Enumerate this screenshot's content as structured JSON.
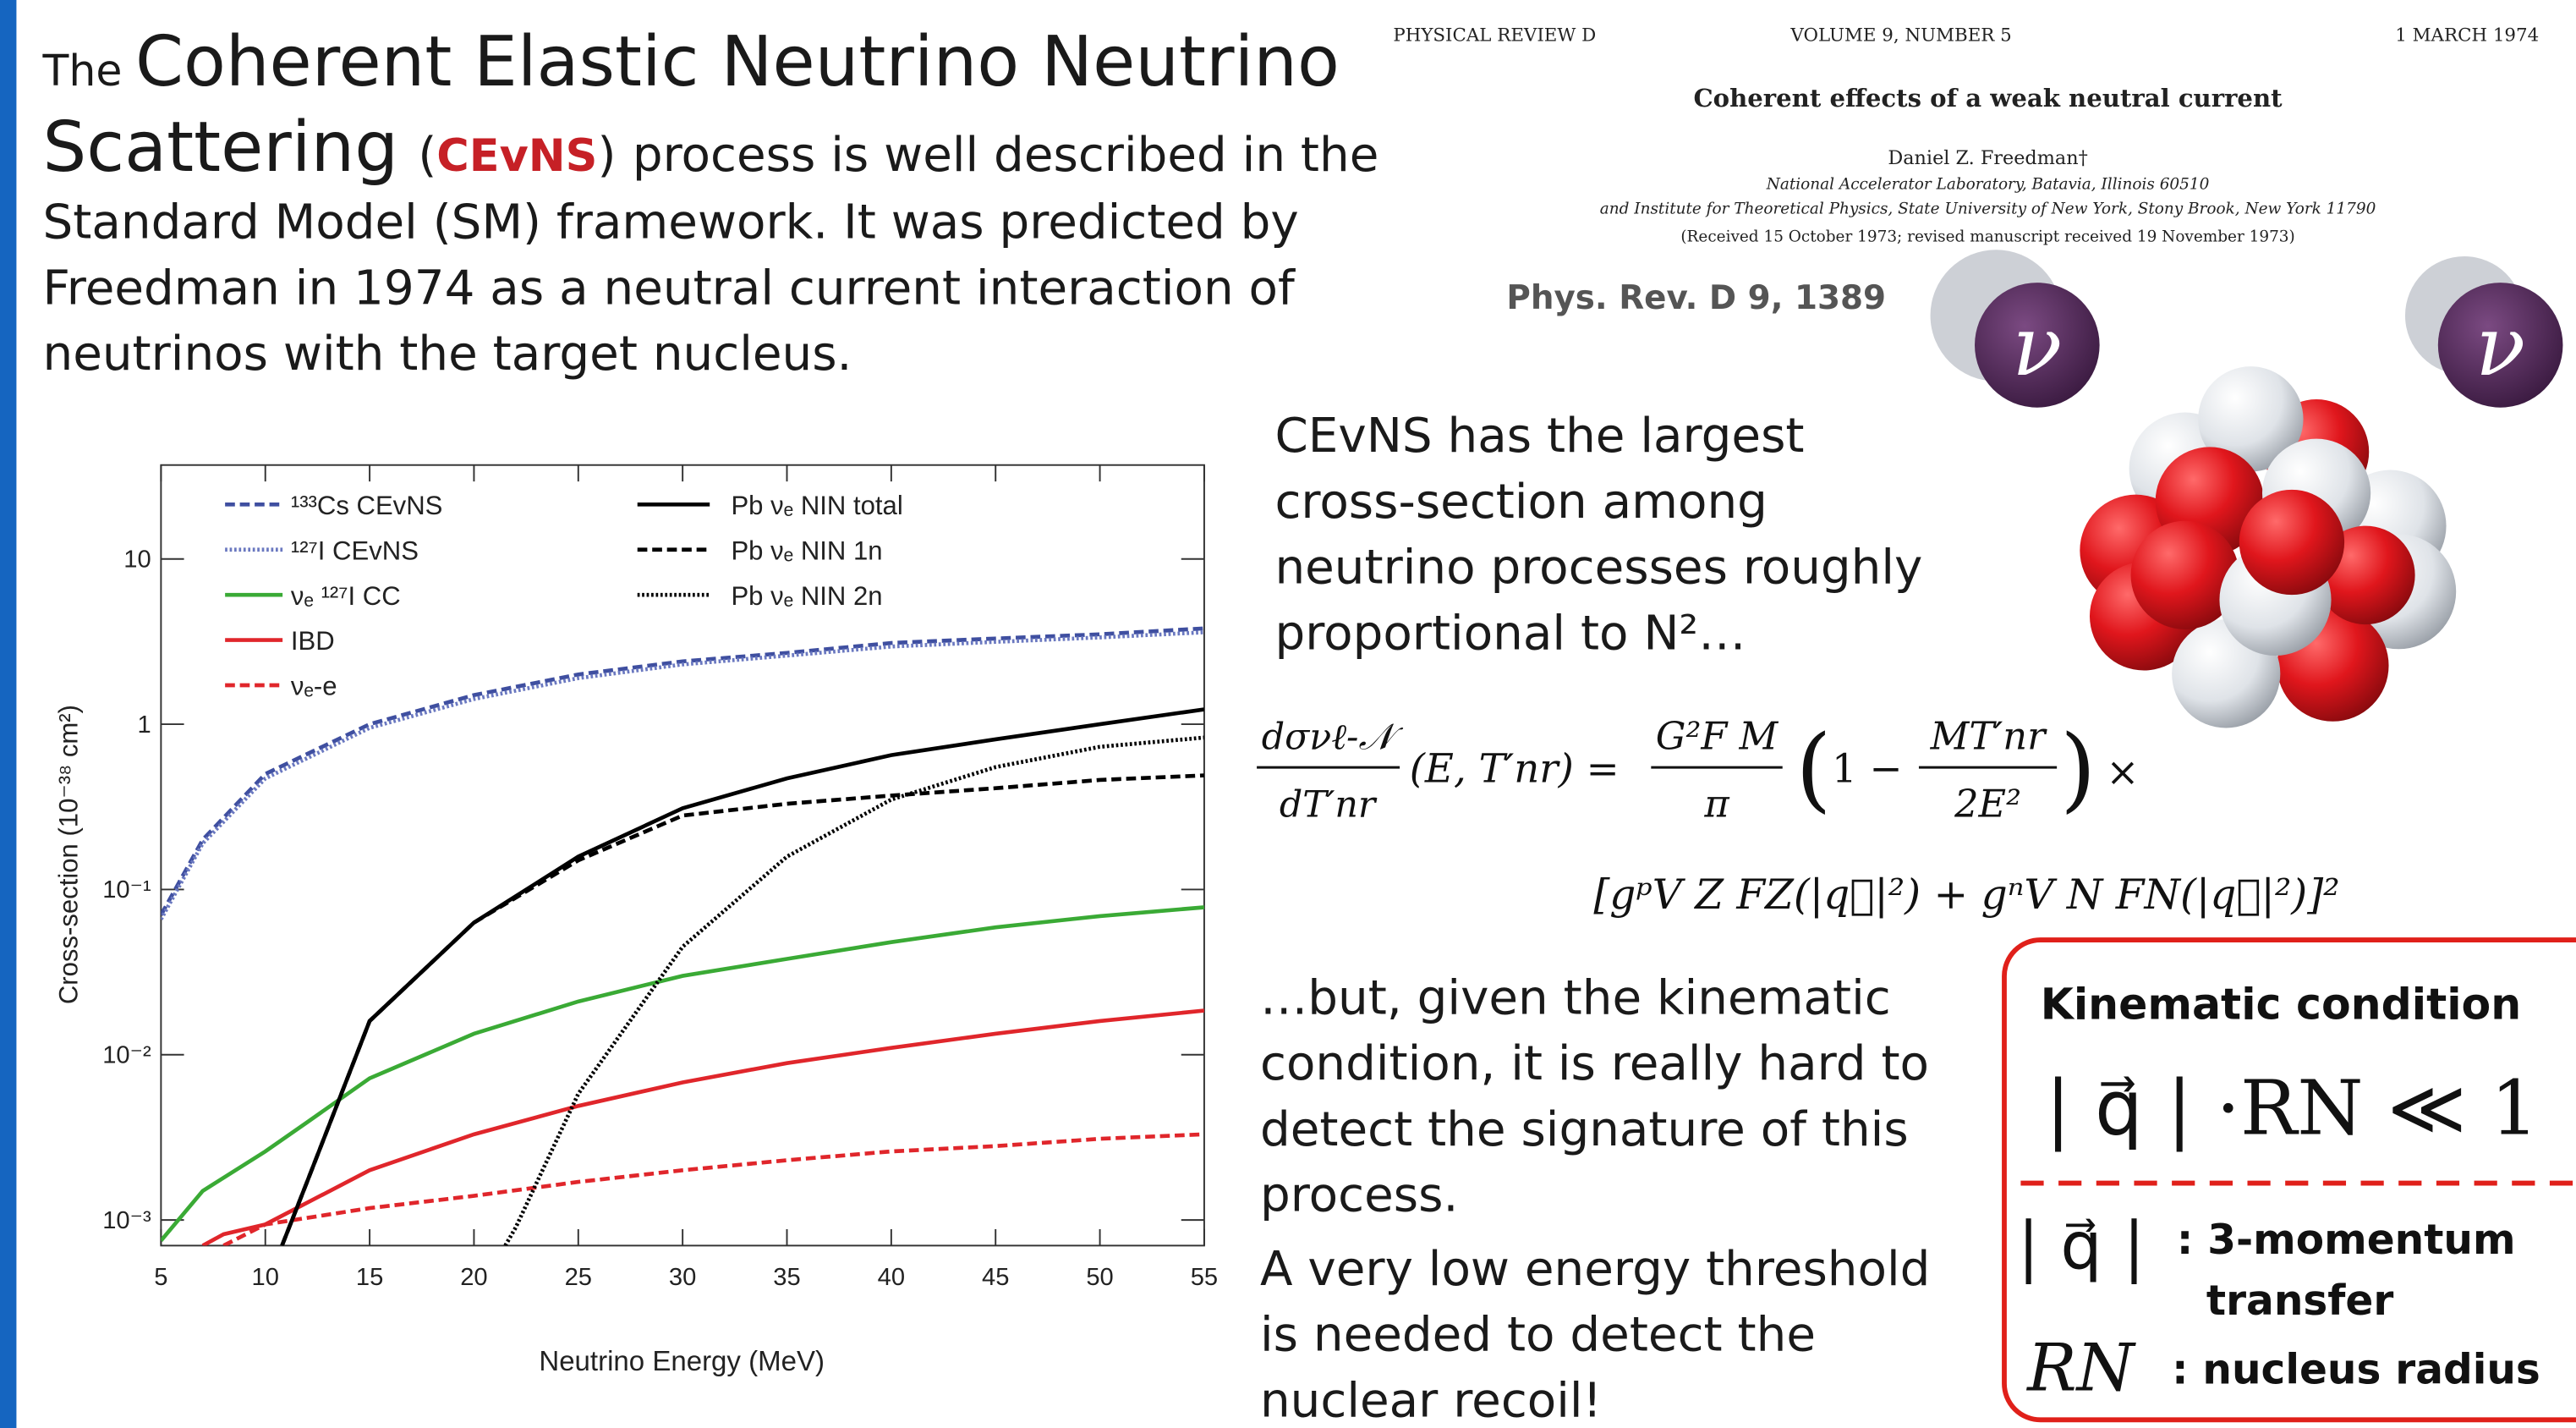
{
  "intro": {
    "lead": "The",
    "title_a": "Coherent Elastic Neutrino Neutrino",
    "title_b": "Scattering",
    "abbr_open": "(",
    "abbr": "CEvNS",
    "abbr_close": ")",
    "rest": "process is well described in the",
    "lines": [
      "Standard Model (SM) framework. It was predicted by",
      "Freedman in 1974 as a neutral current interaction of",
      "neutrinos with the target nucleus."
    ]
  },
  "paper": {
    "journal": "PHYSICAL REVIEW D",
    "volume": "VOLUME 9, NUMBER 5",
    "date": "1 MARCH 1974",
    "title": "Coherent effects of a weak neutral current",
    "author": "Daniel Z. Freedman†",
    "affiliation_1": "National Accelerator Laboratory, Batavia, Illinois 60510",
    "affiliation_2": "and Institute for Theoretical Physics, State University of New York, Stony Brook, New York 11790",
    "received": "(Received 15 October 1973; revised manuscript received 19 November 1973)",
    "reference": "Phys. Rev. D 9, 1389"
  },
  "neutrino_symbol": "ν",
  "cross_section_text": [
    "CEvNS has the largest",
    "cross-section among",
    "neutrino processes roughly",
    "proportional to N²…"
  ],
  "formula": {
    "lhs_num": "dσνℓ-𝒩",
    "lhs_den": "dT′nr",
    "args": "(E, T′nr) =",
    "frac1_num": "G²F M",
    "frac1_den": "π",
    "paren_open": "(",
    "one_minus": "1 −",
    "frac2_num": "MT′nr",
    "frac2_den": "2E²",
    "paren_close": ")",
    "times": "×",
    "line2": "[gᵖV Z FZ(|q⃗|²) + gⁿV N FN(|q⃗|²)]²"
  },
  "kinematic_text": [
    "…but, given the kinematic",
    "condition, it is really hard to",
    "detect the signature of this",
    "process."
  ],
  "threshold_text": [
    "A very low energy threshold",
    "is needed to detect the",
    "nuclear recoil!"
  ],
  "condition_box": {
    "title": "Kinematic condition",
    "condition": "| q⃗ | ·RN ≪ 1",
    "q_symbol": "| q⃗ |",
    "q_desc_1": ": 3-momentum",
    "q_desc_2": "transfer",
    "r_symbol": "RN",
    "r_desc": ": nucleus radius"
  },
  "chart_data": {
    "type": "line",
    "xlabel": "Neutrino Energy (MeV)",
    "ylabel": "Cross-section (10⁻³⁸ cm²)",
    "xlim": [
      5,
      55
    ],
    "ylim": [
      0.0007,
      37
    ],
    "log_y": true,
    "xticks": [
      5,
      10,
      15,
      20,
      25,
      30,
      35,
      40,
      45,
      50,
      55
    ],
    "yticks": [
      {
        "value": 0.001,
        "label": "10⁻³"
      },
      {
        "value": 0.01,
        "label": "10⁻²"
      },
      {
        "value": 0.1,
        "label": "10⁻¹"
      },
      1,
      10
    ],
    "series": [
      {
        "name": "¹³³Cs CEvNS",
        "color": "#3f4fa0",
        "style": "dashed",
        "x": [
          5,
          7,
          10,
          15,
          20,
          25,
          30,
          35,
          40,
          45,
          50,
          55
        ],
        "values": [
          0.07,
          0.2,
          0.5,
          1.0,
          1.5,
          2.0,
          2.4,
          2.7,
          3.1,
          3.3,
          3.5,
          3.8
        ]
      },
      {
        "name": "¹²⁷I CEvNS",
        "color": "#6a78c0",
        "style": "dotted",
        "x": [
          5,
          7,
          10,
          15,
          20,
          25,
          30,
          35,
          40,
          45,
          50,
          55
        ],
        "values": [
          0.066,
          0.19,
          0.47,
          0.95,
          1.42,
          1.9,
          2.3,
          2.6,
          2.95,
          3.15,
          3.35,
          3.6
        ]
      },
      {
        "name": "νₑ ¹²⁷I CC",
        "color": "#3aaa35",
        "style": "solid",
        "x": [
          5,
          7,
          10,
          12,
          15,
          20,
          25,
          30,
          35,
          40,
          45,
          50,
          55
        ],
        "values": [
          0.00075,
          0.0015,
          0.0026,
          0.0039,
          0.0072,
          0.0134,
          0.021,
          0.03,
          0.038,
          0.048,
          0.059,
          0.069,
          0.078
        ]
      },
      {
        "name": "IBD",
        "color": "#e0262b",
        "style": "solid",
        "x": [
          7,
          8,
          10,
          15,
          20,
          25,
          30,
          35,
          40,
          45,
          50,
          55
        ],
        "values": [
          0.0007,
          0.00082,
          0.00094,
          0.002,
          0.0033,
          0.0049,
          0.0068,
          0.0089,
          0.011,
          0.0134,
          0.016,
          0.0185
        ]
      },
      {
        "name": "νₑ-e",
        "color": "#e0262b",
        "style": "dashed",
        "x": [
          8,
          10,
          15,
          20,
          25,
          30,
          35,
          40,
          45,
          50,
          55
        ],
        "values": [
          0.0007,
          0.00094,
          0.00118,
          0.0014,
          0.0017,
          0.002,
          0.0023,
          0.0026,
          0.0028,
          0.0031,
          0.0033
        ]
      },
      {
        "name": "Pb νₑ NIN total",
        "color": "#000000",
        "style": "solid",
        "x": [
          10.8,
          12,
          15,
          20,
          25,
          30,
          35,
          40,
          45,
          50,
          55
        ],
        "values": [
          0.0007,
          0.0017,
          0.016,
          0.063,
          0.158,
          0.31,
          0.47,
          0.65,
          0.81,
          1.0,
          1.23
        ]
      },
      {
        "name": "Pb νₑ NIN 1n",
        "color": "#000000",
        "style": "dashed",
        "x": [
          10.8,
          12,
          15,
          20,
          25,
          30,
          35,
          40,
          45,
          50,
          55
        ],
        "values": [
          0.0007,
          0.0017,
          0.016,
          0.063,
          0.15,
          0.28,
          0.33,
          0.37,
          0.41,
          0.46,
          0.49
        ]
      },
      {
        "name": "Pb νₑ NIN 2n",
        "color": "#000000",
        "style": "dotted",
        "x": [
          21.5,
          22,
          25,
          30,
          35,
          40,
          45,
          50,
          55
        ],
        "values": [
          0.0007,
          0.0009,
          0.0058,
          0.045,
          0.158,
          0.35,
          0.55,
          0.73,
          0.83
        ]
      }
    ]
  }
}
